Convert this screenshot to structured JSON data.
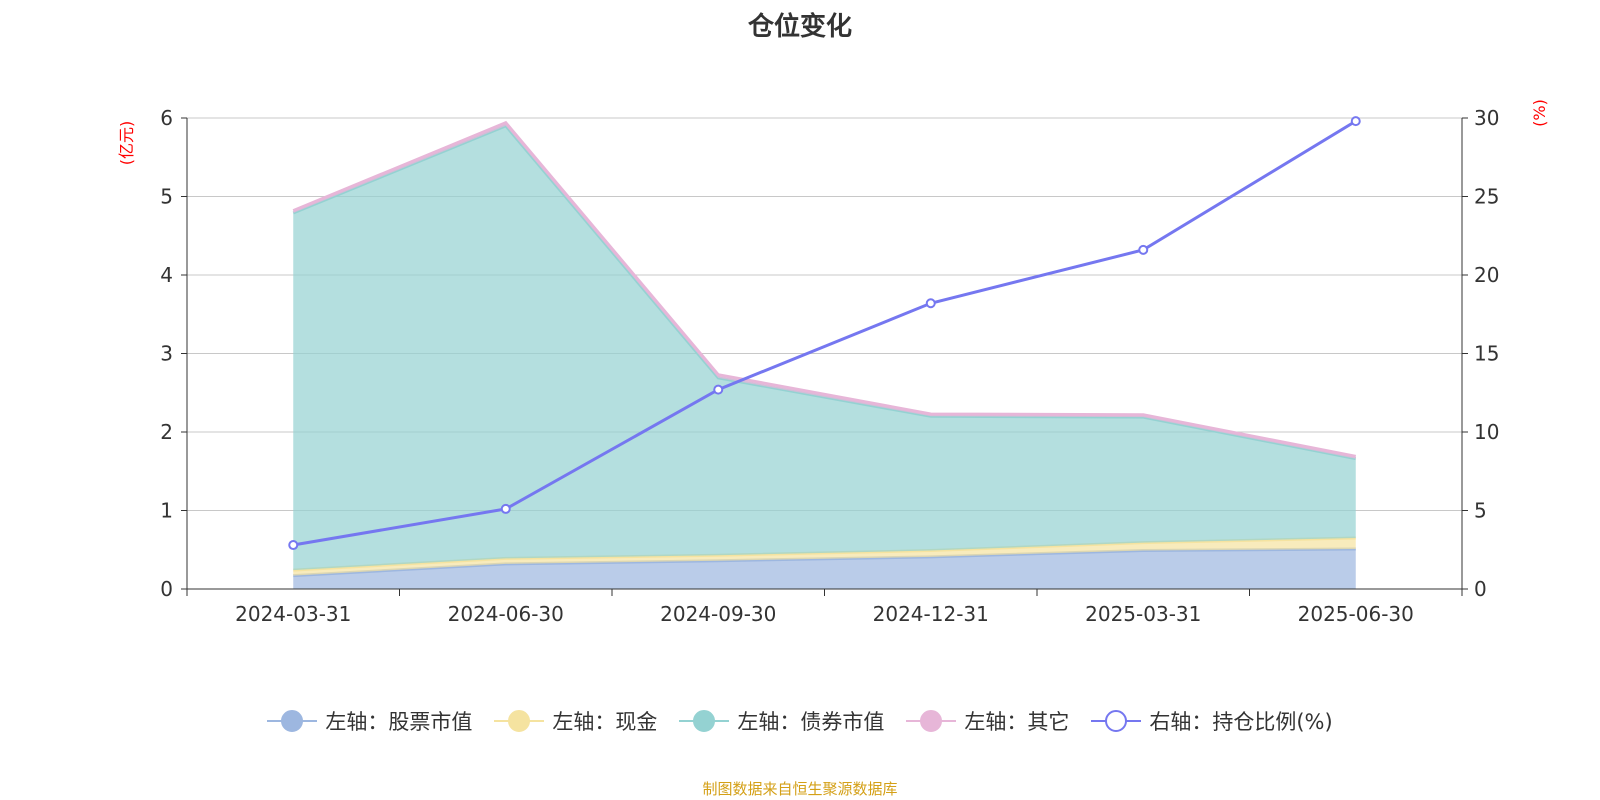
{
  "chart_data": {
    "type": "area",
    "title": "仓位变化",
    "categories": [
      "2024-03-31",
      "2024-06-30",
      "2024-09-30",
      "2024-12-31",
      "2025-03-31",
      "2025-06-30"
    ],
    "left_axis": {
      "label": "(亿元)",
      "range": [
        0,
        6
      ],
      "ticks": [
        "0",
        "1",
        "2",
        "3",
        "4",
        "5",
        "6"
      ]
    },
    "right_axis": {
      "label": "(%)",
      "range": [
        0,
        30
      ],
      "ticks": [
        "0",
        "5",
        "10",
        "15",
        "20",
        "25",
        "30"
      ]
    },
    "grid": true,
    "legend_position": "bottom",
    "stacked": true,
    "series": [
      {
        "name": "左轴：股票市值",
        "axis": "left",
        "type": "area",
        "color": "#9db7e0",
        "values": [
          0.17,
          0.32,
          0.36,
          0.41,
          0.49,
          0.51
        ]
      },
      {
        "name": "左轴：现金",
        "axis": "left",
        "type": "area",
        "color": "#f5e3a0",
        "values": [
          0.07,
          0.07,
          0.07,
          0.08,
          0.1,
          0.14
        ]
      },
      {
        "name": "左轴：债券市值",
        "axis": "left",
        "type": "area",
        "color": "#94d2d2",
        "values": [
          4.55,
          5.51,
          2.26,
          1.71,
          1.6,
          1.01
        ]
      },
      {
        "name": "左轴：其它",
        "axis": "left",
        "type": "area",
        "color": "#e7b6d8",
        "values": [
          0.03,
          0.04,
          0.04,
          0.03,
          0.03,
          0.03
        ]
      },
      {
        "name": "右轴：持仓比例(%)",
        "axis": "right",
        "type": "line",
        "color": "#7577f0",
        "values": [
          2.8,
          5.1,
          12.7,
          18.2,
          21.6,
          29.8
        ]
      }
    ]
  },
  "footer": "制图数据来自恒生聚源数据库"
}
